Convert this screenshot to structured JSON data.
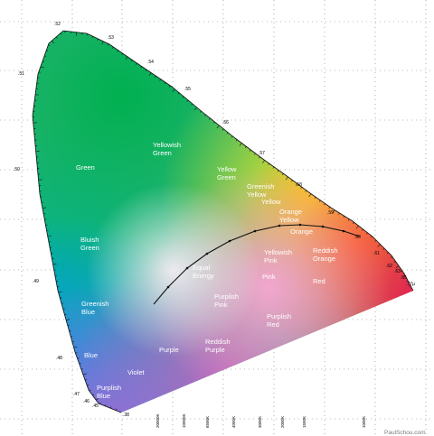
{
  "diagram": {
    "regions": [
      {
        "id": "green",
        "lines": [
          "Green"
        ]
      },
      {
        "id": "yellowish-green",
        "lines": [
          "Yellowish",
          "Green"
        ]
      },
      {
        "id": "yellow-green",
        "lines": [
          "Yellow",
          "Green"
        ]
      },
      {
        "id": "greenish-yellow",
        "lines": [
          "Greenish",
          "Yellow"
        ]
      },
      {
        "id": "yellow",
        "lines": [
          "Yellow"
        ]
      },
      {
        "id": "orange-yellow",
        "lines": [
          "Orange",
          "Yellow"
        ]
      },
      {
        "id": "orange",
        "lines": [
          "Orange"
        ]
      },
      {
        "id": "bluish-green",
        "lines": [
          "Bluish",
          "Green"
        ]
      },
      {
        "id": "yellowish-pink",
        "lines": [
          "Yellowish",
          "Pink"
        ]
      },
      {
        "id": "reddish-orange",
        "lines": [
          "Reddish",
          "Orange"
        ]
      },
      {
        "id": "equal-energy",
        "lines": [
          "Equal",
          "Energy"
        ]
      },
      {
        "id": "pink",
        "lines": [
          "Pink"
        ]
      },
      {
        "id": "red",
        "lines": [
          "Red"
        ]
      },
      {
        "id": "greenish-blue",
        "lines": [
          "Greenish",
          "Blue"
        ]
      },
      {
        "id": "purplish-pink",
        "lines": [
          "Purplish",
          "Pink"
        ]
      },
      {
        "id": "purplish-red",
        "lines": [
          "Purplish",
          "Red"
        ]
      },
      {
        "id": "blue",
        "lines": [
          "Blue"
        ]
      },
      {
        "id": "purple",
        "lines": [
          "Purple"
        ]
      },
      {
        "id": "reddish-purple",
        "lines": [
          "Reddish",
          "Purple"
        ]
      },
      {
        "id": "violet",
        "lines": [
          "Violet"
        ]
      },
      {
        "id": "purplish-blue",
        "lines": [
          "Purplish",
          "Blue"
        ]
      }
    ],
    "wavelength_labels": [
      ".38",
      ".45",
      ".46",
      ".47",
      ".48",
      ".49",
      ".50",
      ".51",
      ".52",
      ".53",
      ".54",
      ".55",
      ".56",
      ".57",
      ".58",
      ".59",
      ".60",
      ".61",
      ".62",
      ".63",
      ".65",
      ".77µ"
    ],
    "temperature_labels": [
      "20000K",
      "10000K",
      "6500K",
      "4000K",
      "3000K",
      "2000K",
      "1500K",
      "1000K"
    ],
    "credit": "PaulSchou.com"
  }
}
